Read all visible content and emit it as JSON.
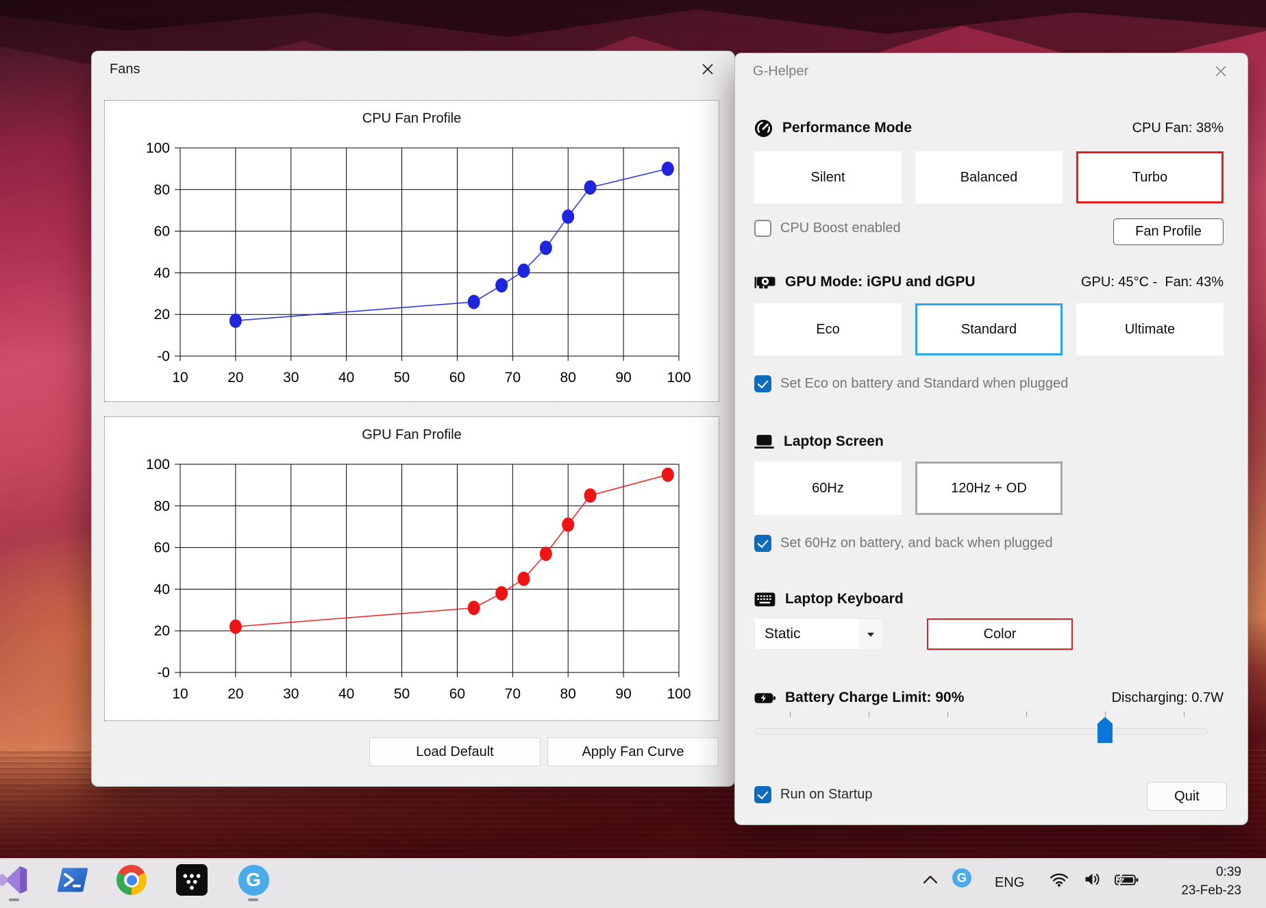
{
  "fans_window": {
    "title": "Fans",
    "load_default_label": "Load Default",
    "apply_label": "Apply Fan Curve"
  },
  "chart_data": [
    {
      "type": "line",
      "title": "CPU Fan Profile",
      "series": [
        {
          "name": "CPU fan curve",
          "x": [
            20,
            63,
            68,
            72,
            76,
            80,
            84,
            98
          ],
          "y": [
            17,
            26,
            34,
            41,
            52,
            67,
            81,
            90
          ]
        }
      ],
      "color": "#1f24dd",
      "xlabel": "",
      "ylabel": "",
      "xlim": [
        10,
        100
      ],
      "ylim": [
        0,
        100
      ],
      "x_ticks": [
        10,
        20,
        30,
        40,
        50,
        60,
        70,
        80,
        90,
        100
      ],
      "y_ticks": [
        0,
        20,
        40,
        60,
        80,
        100
      ],
      "y_tick_labels": [
        "-0",
        "20",
        "40",
        "60",
        "80",
        "100"
      ],
      "grid": true,
      "legend": false
    },
    {
      "type": "line",
      "title": "GPU Fan Profile",
      "series": [
        {
          "name": "GPU fan curve",
          "x": [
            20,
            63,
            68,
            72,
            76,
            80,
            84,
            98
          ],
          "y": [
            22,
            31,
            38,
            45,
            57,
            71,
            85,
            95
          ]
        }
      ],
      "color": "#ee1414",
      "xlabel": "",
      "ylabel": "",
      "xlim": [
        10,
        100
      ],
      "ylim": [
        0,
        100
      ],
      "x_ticks": [
        10,
        20,
        30,
        40,
        50,
        60,
        70,
        80,
        90,
        100
      ],
      "y_ticks": [
        0,
        20,
        40,
        60,
        80,
        100
      ],
      "y_tick_labels": [
        "-0",
        "20",
        "40",
        "60",
        "80",
        "100"
      ],
      "grid": true,
      "legend": false
    }
  ],
  "ghelper": {
    "title": "G-Helper",
    "performance": {
      "heading": "Performance Mode",
      "status": "CPU Fan: 38%",
      "modes": [
        "Silent",
        "Balanced",
        "Turbo"
      ],
      "active_mode": "Turbo",
      "cpu_boost_label": "CPU Boost enabled",
      "cpu_boost_checked": false,
      "fan_profile_label": "Fan Profile"
    },
    "gpu": {
      "heading": "GPU Mode: iGPU and dGPU",
      "status": "GPU: 45°C -  Fan: 43%",
      "modes": [
        "Eco",
        "Standard",
        "Ultimate"
      ],
      "active_mode": "Standard",
      "auto_label": "Set Eco on battery and Standard when plugged",
      "auto_checked": true
    },
    "screen": {
      "heading": "Laptop Screen",
      "modes": [
        "60Hz",
        "120Hz + OD"
      ],
      "active_mode": "120Hz + OD",
      "auto_label": "Set 60Hz on battery, and back when plugged",
      "auto_checked": true
    },
    "keyboard": {
      "heading": "Laptop Keyboard",
      "mode_value": "Static",
      "color_label": "Color"
    },
    "battery": {
      "heading": "Battery Charge Limit: 90%",
      "status": "Discharging: 0.7W",
      "limit_percent": 90
    },
    "run_on_startup_label": "Run on Startup",
    "run_on_startup_checked": true,
    "quit_label": "Quit"
  },
  "taskbar": {
    "tray": {
      "language": "ENG",
      "time": "0:39",
      "date": "23-Feb-23"
    }
  },
  "colors": {
    "accent_red": "#e02020",
    "accent_blue": "#2aa7e2",
    "accent_gray": "#a8a8a8",
    "fan_profile_blue": "#0f6cbd",
    "checkbox_blue": "#0f6cbd",
    "slider_blue": "#0b77d9",
    "cpu_series": "#1f24dd",
    "gpu_series": "#ee1414"
  }
}
